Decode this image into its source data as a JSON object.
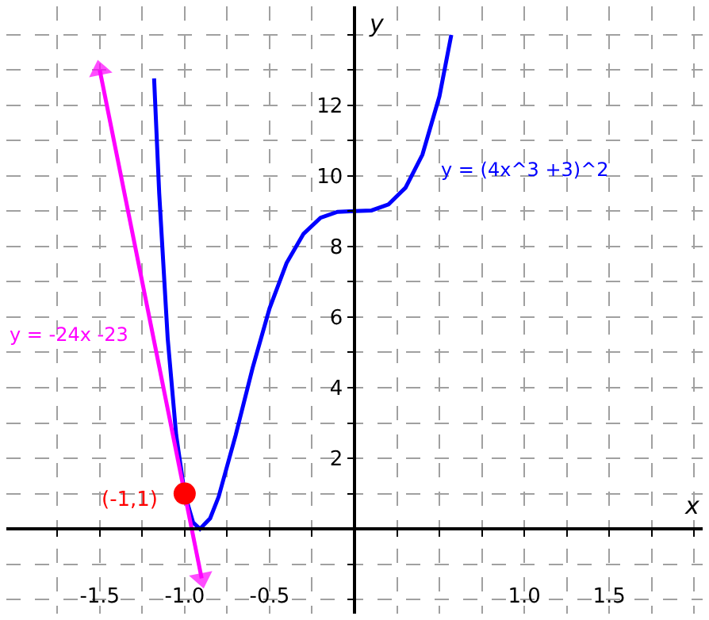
{
  "chart_data": {
    "type": "line",
    "xlabel": "x",
    "ylabel": "y",
    "xlim": [
      -2.05,
      2.05
    ],
    "ylim": [
      -2.4,
      14.8
    ],
    "xticks": [
      {
        "value": -1.75,
        "label": null
      },
      {
        "value": -1.5,
        "label": "-1.5"
      },
      {
        "value": -1.25,
        "label": null
      },
      {
        "value": -1.0,
        "label": "-1.0"
      },
      {
        "value": -0.75,
        "label": null
      },
      {
        "value": -0.5,
        "label": "-0.5"
      },
      {
        "value": -0.25,
        "label": null
      },
      {
        "value": 0.25,
        "label": null
      },
      {
        "value": 0.5,
        "label": null
      },
      {
        "value": 0.75,
        "label": null
      },
      {
        "value": 1.0,
        "label": "1.0"
      },
      {
        "value": 1.25,
        "label": null
      },
      {
        "value": 1.5,
        "label": "1.5"
      },
      {
        "value": 1.75,
        "label": null
      },
      {
        "value": 2.0,
        "label": null
      }
    ],
    "yticks": [
      {
        "value": -2,
        "label": null
      },
      {
        "value": -1,
        "label": null
      },
      {
        "value": 1,
        "label": null
      },
      2,
      {
        "value": 3,
        "label": null
      },
      4,
      {
        "value": 5,
        "label": null
      },
      6,
      {
        "value": 7,
        "label": null
      },
      8,
      {
        "value": 9,
        "label": null
      },
      10,
      {
        "value": 11,
        "label": null
      },
      12,
      {
        "value": 13,
        "label": null
      },
      {
        "value": 14,
        "label": null
      }
    ],
    "grid": true,
    "series": [
      {
        "color": "#0000ff",
        "marker": "none",
        "x": [
          -1.18,
          -1.15,
          -1.1,
          -1.05,
          -1.0,
          -0.95,
          -0.91,
          -0.85,
          -0.8,
          -0.7,
          -0.6,
          -0.5,
          -0.4,
          -0.3,
          -0.2,
          -0.1,
          0,
          0.1,
          0.2,
          0.3,
          0.4,
          0.5,
          0.57
        ],
        "values": [
          12.76,
          9.51,
          5.4,
          2.66,
          1,
          0.18,
          0,
          0.3,
          0.91,
          2.65,
          4.56,
          6.25,
          7.53,
          8.36,
          8.81,
          8.98,
          9,
          9.02,
          9.19,
          9.66,
          10.6,
          12.25,
          13.99
        ]
      },
      {
        "color": "#ff00ff",
        "marker": "triangle",
        "x": [
          -1.5,
          -0.9
        ],
        "values": [
          13,
          -1.4
        ]
      },
      {
        "type": "scatter",
        "color": "#ff0000",
        "marker": "circle",
        "x": [
          -1.0
        ],
        "values": [
          1
        ]
      }
    ],
    "annotations": [
      "y = (4x^3 +3)^2",
      "y = -24x -23",
      {
        "text": "(-1,1)",
        "x": -1.0,
        "y": 1
      }
    ]
  }
}
